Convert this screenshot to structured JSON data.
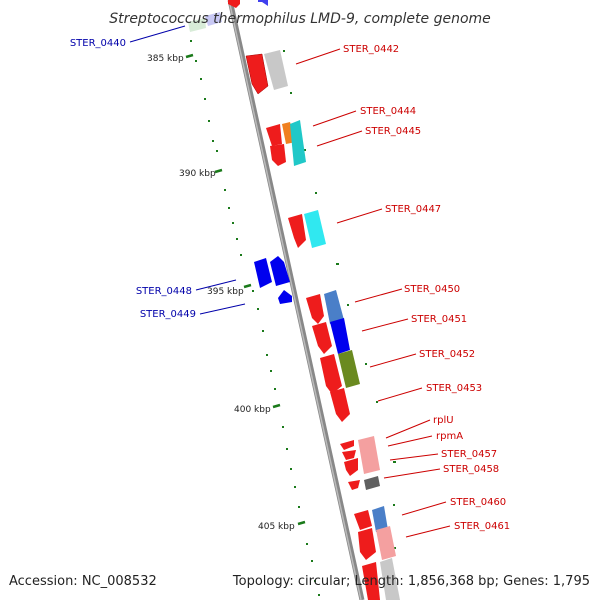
{
  "title": "Streptococcus thermophilus LMD-9, complete genome",
  "accession": "Accession: NC_008532",
  "topology": "Topology: circular; Length: 1,856,368 bp; Genes: 1,795",
  "colors": {
    "backbone": "#999999",
    "tick": "#1a7a1a",
    "forward_cds": "#ee1c1c",
    "reverse_cds": "#0000ee",
    "label_forward": "#cc0000",
    "label_reverse": "#0000aa"
  },
  "scale_labels": [
    "385 kbp",
    "390 kbp",
    "395 kbp",
    "400 kbp",
    "405 kbp"
  ],
  "genes_right": [
    "STER_0442",
    "STER_0444",
    "STER_0445",
    "STER_0447",
    "STER_0450",
    "STER_0451",
    "STER_0452",
    "STER_0453",
    "rplU",
    "rpmA",
    "STER_0457",
    "STER_0458",
    "STER_0460",
    "STER_0461"
  ],
  "genes_left": [
    "STER_0440",
    "STER_0448",
    "STER_0449"
  ]
}
